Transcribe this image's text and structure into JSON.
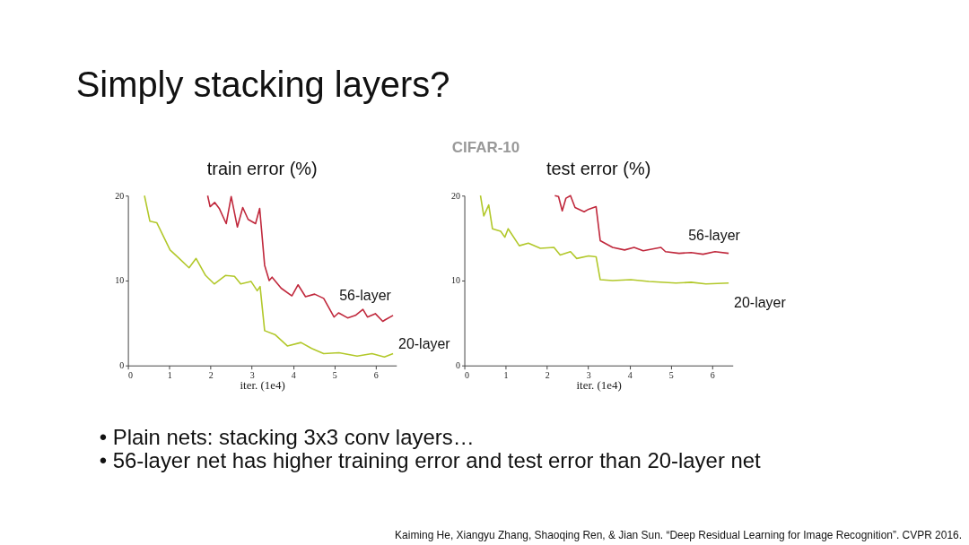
{
  "chart_data": [
    {
      "type": "line",
      "title": "train error (%)",
      "xlabel": "iter. (1e4)",
      "xlim": [
        0,
        6.5
      ],
      "xticks": [
        0,
        1,
        2,
        3,
        4,
        5,
        6
      ],
      "ylim": [
        0,
        20
      ],
      "yticks": [
        0,
        10,
        20
      ],
      "grid": false,
      "legend": false,
      "line_style": "solid",
      "marker": "none",
      "annotations": [
        "Simply stacking layers?",
        "CIFAR-10",
        "• Plain nets: stacking 3x3 conv layers…",
        "• 56-layer net has higher training error and test error than 20-layer net",
        "Kaiming He, Xiangyu Zhang, Shaoqing Ren, & Jian Sun. “Deep Residual Learning for Image Recognition”. CVPR 2016."
      ],
      "series": [
        {
          "name": "56-layer",
          "color": "#c0283c",
          "x": [
            1.93,
            1.99,
            2.1,
            2.21,
            2.38,
            2.5,
            2.65,
            2.78,
            2.91,
            3.09,
            3.19,
            3.31,
            3.42,
            3.49,
            3.71,
            3.97,
            4.12,
            4.3,
            4.52,
            4.74,
            4.99,
            5.1,
            5.32,
            5.51,
            5.69,
            5.8,
            5.99,
            6.17,
            6.24,
            6.42
          ],
          "values": [
            20,
            18.7,
            19.2,
            18.5,
            16.7,
            19.9,
            16.3,
            18.6,
            17.2,
            16.7,
            18.5,
            11.8,
            10.0,
            10.4,
            9.1,
            8.2,
            9.5,
            8.1,
            8.4,
            7.9,
            5.7,
            6.2,
            5.6,
            5.9,
            6.6,
            5.7,
            6.1,
            5.2,
            5.4,
            5.9
          ]
        },
        {
          "name": "20-layer",
          "color": "#b2c82a",
          "x": [
            0.4,
            0.53,
            0.7,
            1.02,
            1.22,
            1.48,
            1.65,
            1.88,
            2.09,
            2.36,
            2.58,
            2.73,
            2.98,
            3.13,
            3.2,
            3.31,
            3.57,
            3.86,
            4.19,
            4.45,
            4.74,
            5.11,
            5.55,
            5.91,
            6.21,
            6.42
          ],
          "values": [
            20,
            17.0,
            16.8,
            13.6,
            12.7,
            11.5,
            12.6,
            10.6,
            9.6,
            10.6,
            10.5,
            9.6,
            9.9,
            8.8,
            9.3,
            4.1,
            3.6,
            2.3,
            2.7,
            2.0,
            1.4,
            1.5,
            1.1,
            1.4,
            1.0,
            1.4
          ]
        }
      ]
    },
    {
      "type": "line",
      "title": "test error (%)",
      "xlabel": "iter. (1e4)",
      "xlim": [
        0,
        6.5
      ],
      "xticks": [
        0,
        1,
        2,
        3,
        4,
        5,
        6
      ],
      "ylim": [
        0,
        20
      ],
      "yticks": [
        0,
        10,
        20
      ],
      "grid": false,
      "legend": false,
      "line_style": "solid",
      "marker": "none",
      "series": [
        {
          "name": "56-layer",
          "color": "#c0283c",
          "x": [
            2.19,
            2.28,
            2.37,
            2.46,
            2.57,
            2.68,
            2.9,
            3.01,
            3.19,
            3.29,
            3.59,
            3.88,
            4.11,
            4.33,
            4.76,
            4.87,
            5.2,
            5.49,
            5.78,
            6.07,
            6.4
          ],
          "values": [
            20,
            19.9,
            18.2,
            19.7,
            20,
            18.6,
            18.1,
            18.4,
            18.7,
            14.7,
            13.9,
            13.6,
            13.9,
            13.5,
            13.9,
            13.4,
            13.2,
            13.3,
            13.1,
            13.4,
            13.2
          ]
        },
        {
          "name": "20-layer",
          "color": "#b2c82a",
          "x": [
            0.39,
            0.47,
            0.59,
            0.68,
            0.88,
            0.98,
            1.06,
            1.33,
            1.55,
            1.84,
            2.17,
            2.32,
            2.57,
            2.72,
            3.01,
            3.19,
            3.29,
            3.59,
            4.03,
            4.47,
            5.12,
            5.49,
            5.85,
            6.4
          ],
          "values": [
            20,
            17.6,
            18.9,
            16.1,
            15.8,
            15.1,
            16.1,
            14.1,
            14.4,
            13.8,
            13.9,
            13.0,
            13.4,
            12.6,
            12.9,
            12.8,
            10.1,
            10.0,
            10.1,
            9.9,
            9.7,
            9.8,
            9.6,
            9.7
          ]
        }
      ]
    }
  ]
}
